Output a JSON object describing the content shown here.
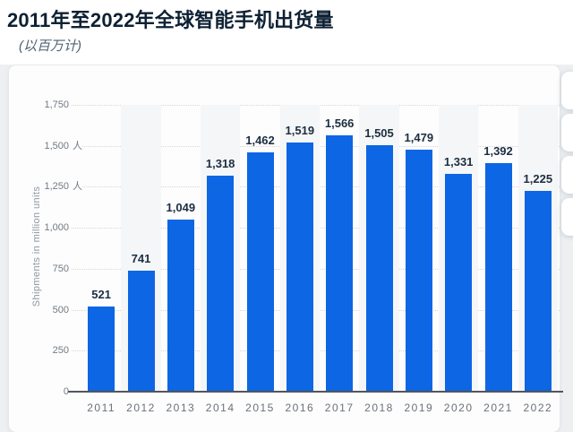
{
  "header": {
    "title": "2011年至2022年全球智能手机出货量",
    "subtitle": "(以百万计)"
  },
  "chart_data": {
    "type": "bar",
    "title": "2011年至2022年全球智能手机出货量",
    "subtitle": "(以百万计)",
    "categories": [
      "2011",
      "2012",
      "2013",
      "2014",
      "2015",
      "2016",
      "2017",
      "2018",
      "2019",
      "2020",
      "2021",
      "2022"
    ],
    "values": [
      521,
      741,
      1049,
      1318,
      1462,
      1519,
      1566,
      1505,
      1479,
      1331,
      1392,
      1225
    ],
    "value_labels": [
      "521",
      "741",
      "1,049",
      "1,318",
      "1,462",
      "1,519",
      "1,566",
      "1,505",
      "1,479",
      "1,331",
      "1,392",
      "1,225"
    ],
    "xlabel": "",
    "ylabel": "Shipments in million units",
    "ylim": [
      0,
      1750
    ],
    "y_ticks": [
      {
        "value": 0,
        "label": "0"
      },
      {
        "value": 250,
        "label": "250"
      },
      {
        "value": 500,
        "label": "500"
      },
      {
        "value": 750,
        "label": "750"
      },
      {
        "value": 1000,
        "label": "1,000"
      },
      {
        "value": 1250,
        "label": "1,250 人"
      },
      {
        "value": 1500,
        "label": "1,500 人"
      },
      {
        "value": 1750,
        "label": "1,750"
      }
    ],
    "grid": true,
    "legend": false,
    "colors": {
      "bar": "#0d66e4",
      "plot_band": "#f5f6f7",
      "title_text": "#0e2133",
      "value_label_text": "#1b2e40",
      "axis_line": "#53565a"
    },
    "banded_columns": [
      "2012",
      "2014",
      "2016",
      "2018",
      "2020",
      "2022"
    ]
  },
  "side_toolbar": {
    "button_count": 4
  }
}
